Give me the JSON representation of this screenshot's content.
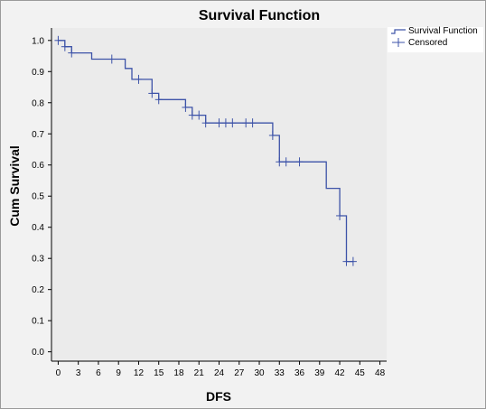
{
  "colors": {
    "plot_background": "#ebebeb",
    "outer_background": "#f2f2f2",
    "series_line": "#3d53a8",
    "axis": "#000000"
  },
  "chart_data": {
    "type": "line",
    "step": true,
    "title": "Survival Function",
    "xlabel": "DFS",
    "ylabel": "Cum Survival",
    "xlim": [
      -1,
      49
    ],
    "ylim": [
      -0.03,
      1.04
    ],
    "x_ticks": [
      0,
      3,
      6,
      9,
      12,
      15,
      18,
      21,
      24,
      27,
      30,
      33,
      36,
      39,
      42,
      45,
      48
    ],
    "y_ticks": [
      0.0,
      0.1,
      0.2,
      0.3,
      0.4,
      0.5,
      0.6,
      0.7,
      0.8,
      0.9,
      1.0
    ],
    "y_tick_labels": [
      "0.0",
      "0.1",
      "0.2",
      "0.3",
      "0.4",
      "0.5",
      "0.6",
      "0.7",
      "0.8",
      "0.9",
      "1.0"
    ],
    "grid": false,
    "legend": {
      "placement": "top-right",
      "entries": [
        "Survival Function",
        "Censored"
      ]
    },
    "series": [
      {
        "name": "Survival Function",
        "x": [
          0,
          1,
          1,
          2,
          2,
          5,
          5,
          10,
          10,
          11,
          11,
          14,
          14,
          15,
          15,
          19,
          19,
          20,
          20,
          22,
          22,
          32,
          32,
          33,
          33,
          40,
          40,
          42,
          42,
          43,
          43,
          44
        ],
        "y": [
          1.0,
          1.0,
          0.98,
          0.98,
          0.96,
          0.96,
          0.94,
          0.94,
          0.91,
          0.91,
          0.875,
          0.875,
          0.83,
          0.83,
          0.81,
          0.81,
          0.785,
          0.785,
          0.76,
          0.76,
          0.735,
          0.735,
          0.695,
          0.695,
          0.61,
          0.61,
          0.525,
          0.525,
          0.437,
          0.437,
          0.29,
          0.29
        ]
      },
      {
        "name": "Censored",
        "marker": "plus",
        "x": [
          0,
          1,
          2,
          8,
          12,
          14,
          15,
          19,
          20,
          21,
          22,
          24,
          25,
          26,
          28,
          29,
          32,
          33,
          34,
          36,
          42,
          43,
          44
        ],
        "y": [
          1.0,
          0.98,
          0.96,
          0.94,
          0.875,
          0.83,
          0.81,
          0.785,
          0.76,
          0.76,
          0.735,
          0.735,
          0.735,
          0.735,
          0.735,
          0.735,
          0.695,
          0.61,
          0.61,
          0.61,
          0.437,
          0.29,
          0.29
        ]
      }
    ]
  }
}
